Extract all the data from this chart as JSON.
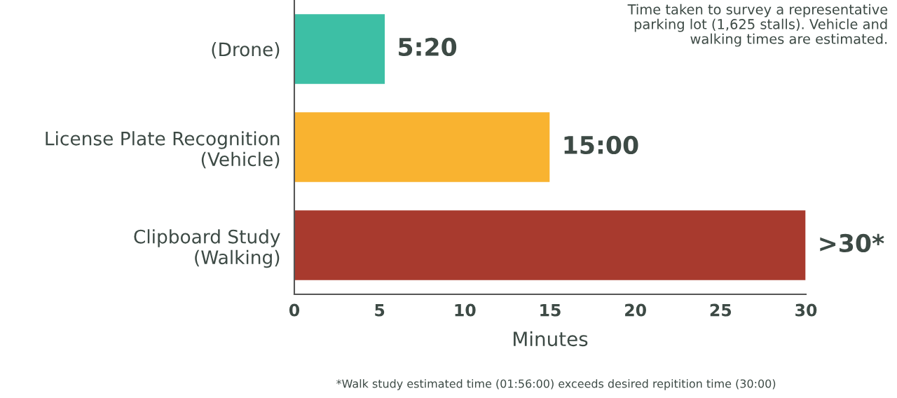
{
  "chart_data": {
    "type": "bar",
    "orientation": "horizontal",
    "categories": [
      "(Drone)",
      "License Plate Recognition\n(Vehicle)",
      "Clipboard Study\n(Walking)"
    ],
    "values": [
      5.333,
      15,
      30
    ],
    "colors": [
      "#3dbfa5",
      "#f9b330",
      "#a83a2e"
    ],
    "value_labels": [
      "5:20",
      "15:00",
      ">30*"
    ],
    "xlim": [
      0,
      30
    ],
    "xticks": [
      0,
      5,
      10,
      15,
      20,
      25,
      30
    ],
    "xlabel": "Minutes",
    "annotations": [
      "Time taken to survey a representative\nparking lot (1,625 stalls). Vehicle and\nwalking times are estimated.",
      "*Walk study estimated time (01:56:00) exceeds desired repitition time (30:00)"
    ],
    "grid": false,
    "legend": false
  }
}
